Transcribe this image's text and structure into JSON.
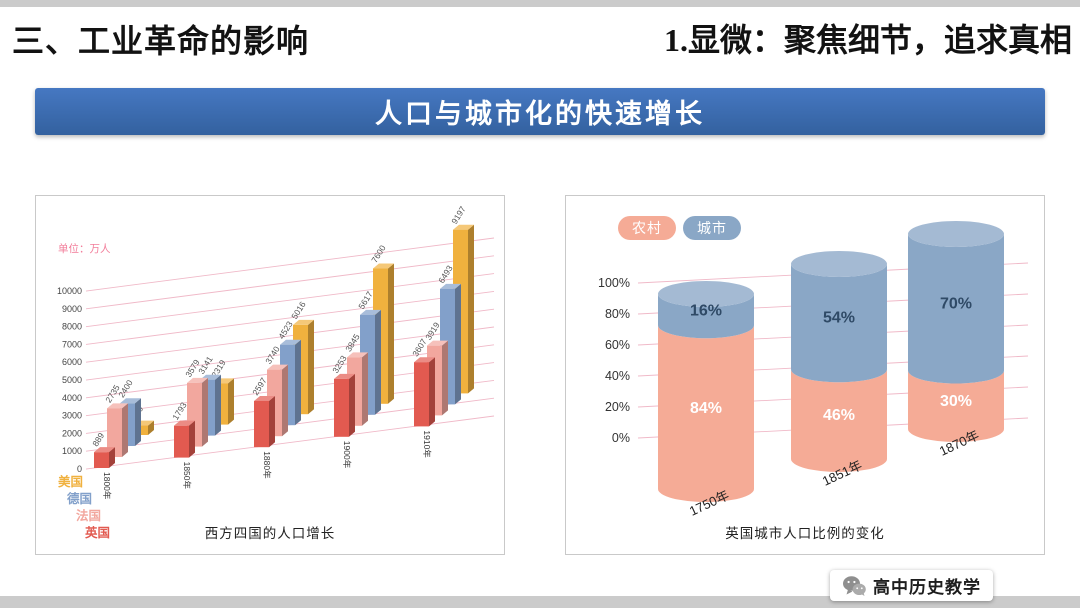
{
  "page": {
    "header_left": "三、工业革命的影响",
    "header_right": "1.显微：聚焦细节，追求真相",
    "banner_title": "人口与城市化的快速增长",
    "watermark_text": "高中历史教学"
  },
  "colors": {
    "banner_blue_top": "#4678c2",
    "banner_blue_bottom": "#33619f",
    "grid_pink": "#f0b9c8",
    "unit_label_pink": "#f27d9a",
    "series_colors": [
      "#f0b13e",
      "#82a0ca",
      "#f2a79e",
      "#e25a50"
    ],
    "rural_pink": "#f5ab96",
    "urban_blue": "#8aa7c6",
    "strip_gray": "#cbcbcb"
  },
  "chart_data": [
    {
      "type": "bar",
      "subtype": "3d-grouped",
      "title": "西方四国的人口增长",
      "unit_label": "单位：万人",
      "categories": [
        "1800年",
        "1850年",
        "1880年",
        "1900年",
        "1910年"
      ],
      "series": [
        {
          "name": "美国",
          "values": [
            530,
            2319,
            5016,
            7600,
            9197
          ]
        },
        {
          "name": "德国",
          "values": [
            2400,
            3141,
            4523,
            5617,
            6493
          ]
        },
        {
          "name": "法国",
          "values": [
            2735,
            3579,
            3740,
            3845,
            3919
          ]
        },
        {
          "name": "英国",
          "values": [
            889,
            1793,
            2597,
            3253,
            3607
          ]
        }
      ],
      "ylim": [
        0,
        10000
      ],
      "yticks": [
        0,
        1000,
        2000,
        3000,
        4000,
        5000,
        6000,
        7000,
        8000,
        9000,
        10000
      ],
      "grid": true,
      "legend_position": "left-bottom"
    },
    {
      "type": "bar",
      "subtype": "stacked-percent-cylinder",
      "title": "英国城市人口比例的变化",
      "categories": [
        "1750年",
        "1851年",
        "1870年"
      ],
      "legend": [
        "农村",
        "城市"
      ],
      "series": [
        {
          "name": "农村",
          "values": [
            84,
            46,
            30
          ]
        },
        {
          "name": "城市",
          "values": [
            16,
            54,
            70
          ]
        }
      ],
      "ylim": [
        0,
        100
      ],
      "yticks": [
        "0%",
        "20%",
        "40%",
        "60%",
        "80%",
        "100%"
      ],
      "grid": true,
      "legend_position": "top-left"
    }
  ]
}
